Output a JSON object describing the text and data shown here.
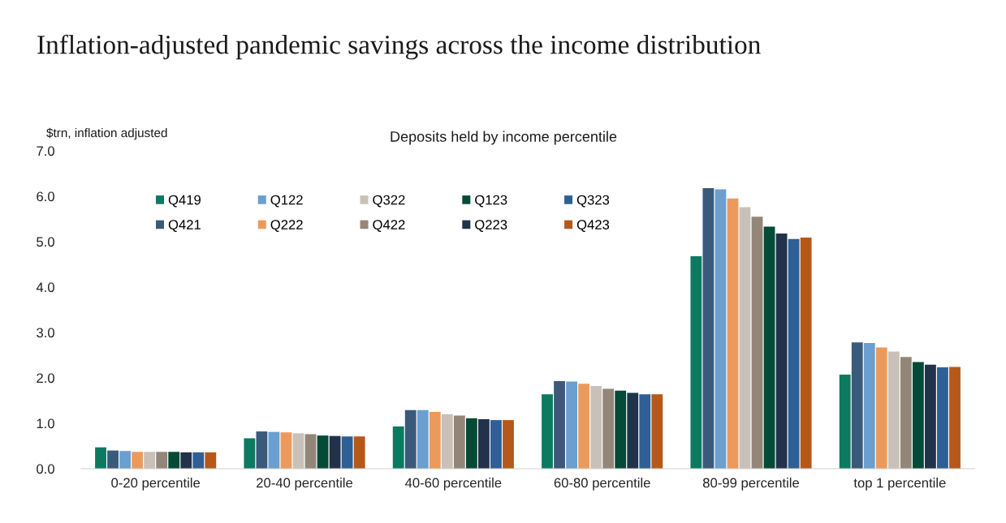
{
  "chart_data": {
    "type": "bar",
    "title": "Inflation-adjusted pandemic savings across the income distribution",
    "subtitle": "Deposits held by income percentile",
    "ylabel": "$trn, inflation adjusted",
    "categories": [
      "0-20 percentile",
      "20-40 percentile",
      "40-60 percentile",
      "60-80 percentile",
      "80-99 percentile",
      "top 1 percentile"
    ],
    "series": [
      {
        "name": "Q419",
        "color": "#0b7a61",
        "values": [
          0.47,
          0.67,
          0.93,
          1.64,
          4.68,
          2.07
        ]
      },
      {
        "name": "Q421",
        "color": "#3a5a7c",
        "values": [
          0.4,
          0.82,
          1.29,
          1.93,
          6.18,
          2.78
        ]
      },
      {
        "name": "Q122",
        "color": "#6a9fd0",
        "values": [
          0.39,
          0.81,
          1.29,
          1.92,
          6.15,
          2.77
        ]
      },
      {
        "name": "Q222",
        "color": "#ec9a5c",
        "values": [
          0.37,
          0.8,
          1.25,
          1.87,
          5.95,
          2.67
        ]
      },
      {
        "name": "Q322",
        "color": "#c9c1b8",
        "values": [
          0.37,
          0.78,
          1.2,
          1.82,
          5.76,
          2.58
        ]
      },
      {
        "name": "Q422",
        "color": "#938679",
        "values": [
          0.37,
          0.76,
          1.17,
          1.76,
          5.55,
          2.46
        ]
      },
      {
        "name": "Q123",
        "color": "#034a37",
        "values": [
          0.37,
          0.73,
          1.11,
          1.72,
          5.33,
          2.35
        ]
      },
      {
        "name": "Q223",
        "color": "#22324a",
        "values": [
          0.36,
          0.72,
          1.09,
          1.67,
          5.18,
          2.29
        ]
      },
      {
        "name": "Q323",
        "color": "#2e5f96",
        "values": [
          0.36,
          0.71,
          1.07,
          1.64,
          5.06,
          2.23
        ]
      },
      {
        "name": "Q423",
        "color": "#b5581a",
        "values": [
          0.36,
          0.71,
          1.07,
          1.64,
          5.09,
          2.24
        ]
      }
    ],
    "ylim": [
      0,
      7
    ],
    "yticks": [
      {
        "value": 0,
        "label": "0.0"
      },
      {
        "value": 1,
        "label": "1.0"
      },
      {
        "value": 2,
        "label": "2.0"
      },
      {
        "value": 3,
        "label": "3.0"
      },
      {
        "value": 4,
        "label": "4.0"
      },
      {
        "value": 5,
        "label": "5.0"
      },
      {
        "value": 6,
        "label": "6.0"
      },
      {
        "value": 7,
        "label": "7.0"
      }
    ],
    "grid": false,
    "legend": "top left"
  }
}
